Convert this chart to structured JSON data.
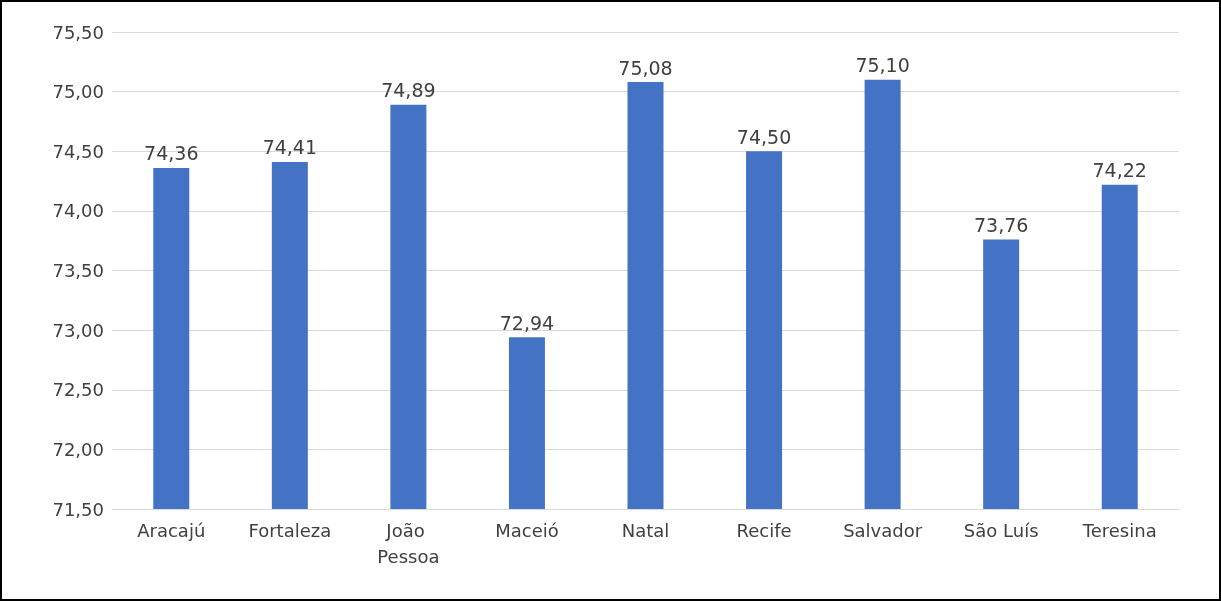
{
  "chart_data": {
    "type": "bar",
    "categories": [
      "Aracajú",
      "Fortaleza",
      "João Pessoa",
      "Maceió",
      "Natal",
      "Recife",
      "Salvador",
      "São Luís",
      "Teresina"
    ],
    "values": [
      74.36,
      74.41,
      74.89,
      72.94,
      75.08,
      74.5,
      75.1,
      73.76,
      74.22
    ],
    "value_labels": [
      "74,36",
      "74,41",
      "74,89",
      "72,94",
      "75,08",
      "74,50",
      "75,10",
      "73,76",
      "74,22"
    ],
    "color": "#4472c4",
    "ylim": [
      71.5,
      75.5
    ],
    "yticks": [
      {
        "value": 71.5,
        "label": "71,50"
      },
      {
        "value": 72,
        "label": "72,00"
      },
      {
        "value": 72.5,
        "label": "72,50"
      },
      {
        "value": 73,
        "label": "73,00"
      },
      {
        "value": 73.5,
        "label": "73,50"
      },
      {
        "value": 74,
        "label": "74,00"
      },
      {
        "value": 74.5,
        "label": "74,50"
      },
      {
        "value": 75,
        "label": "75,00"
      },
      {
        "value": 75.5,
        "label": "75,50"
      }
    ],
    "grid": "y"
  }
}
